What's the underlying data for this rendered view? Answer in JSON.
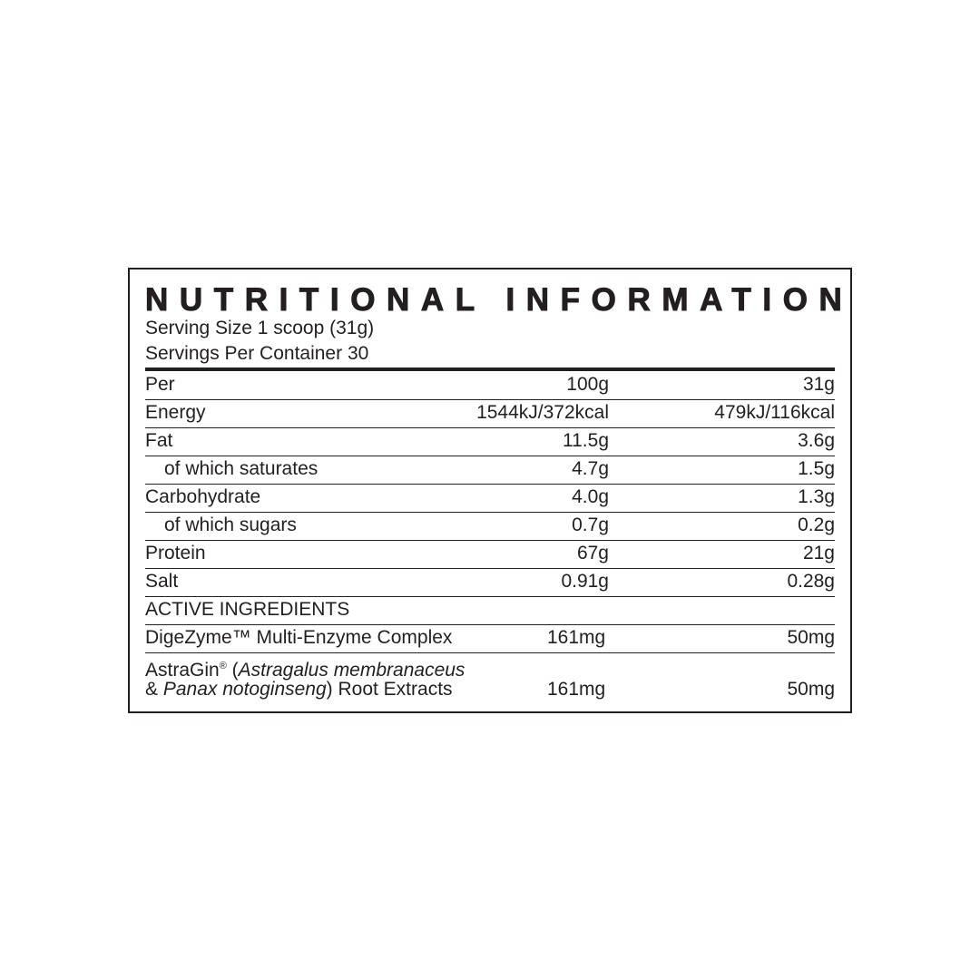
{
  "title": "NUTRITIONAL INFORMATION",
  "serving_size": "Serving Size 1 scoop (31g)",
  "servings_per_container": "Servings Per Container 30",
  "header": {
    "label": "Per",
    "col1": "100g",
    "col2": "31g"
  },
  "rows": [
    {
      "label": "Energy",
      "col1": "1544kJ/372kcal",
      "col2": "479kJ/116kcal"
    },
    {
      "label": "Fat",
      "col1": "11.5g",
      "col2": "3.6g"
    },
    {
      "label": "of which saturates",
      "col1": "4.7g",
      "col2": "1.5g"
    },
    {
      "label": "Carbohydrate",
      "col1": "4.0g",
      "col2": "1.3g"
    },
    {
      "label": "of which sugars",
      "col1": "0.7g",
      "col2": "0.2g"
    },
    {
      "label": "Protein",
      "col1": "67g",
      "col2": "21g"
    },
    {
      "label": "Salt",
      "col1": "0.91g",
      "col2": "0.28g"
    }
  ],
  "active_heading": "ACTIVE INGREDIENTS",
  "active": [
    {
      "label": "DigeZyme™ Multi-Enzyme Complex",
      "col1": "161mg",
      "col2": "50mg"
    },
    {
      "label_parts": {
        "brand": "AstraGin",
        "reg": "®",
        "open": " (",
        "italic1": "Astragalus membranaceus",
        "amp": "& ",
        "italic2": "Panax notoginseng",
        "rest": ") Root Extracts"
      },
      "col1": "161mg",
      "col2": "50mg"
    }
  ]
}
